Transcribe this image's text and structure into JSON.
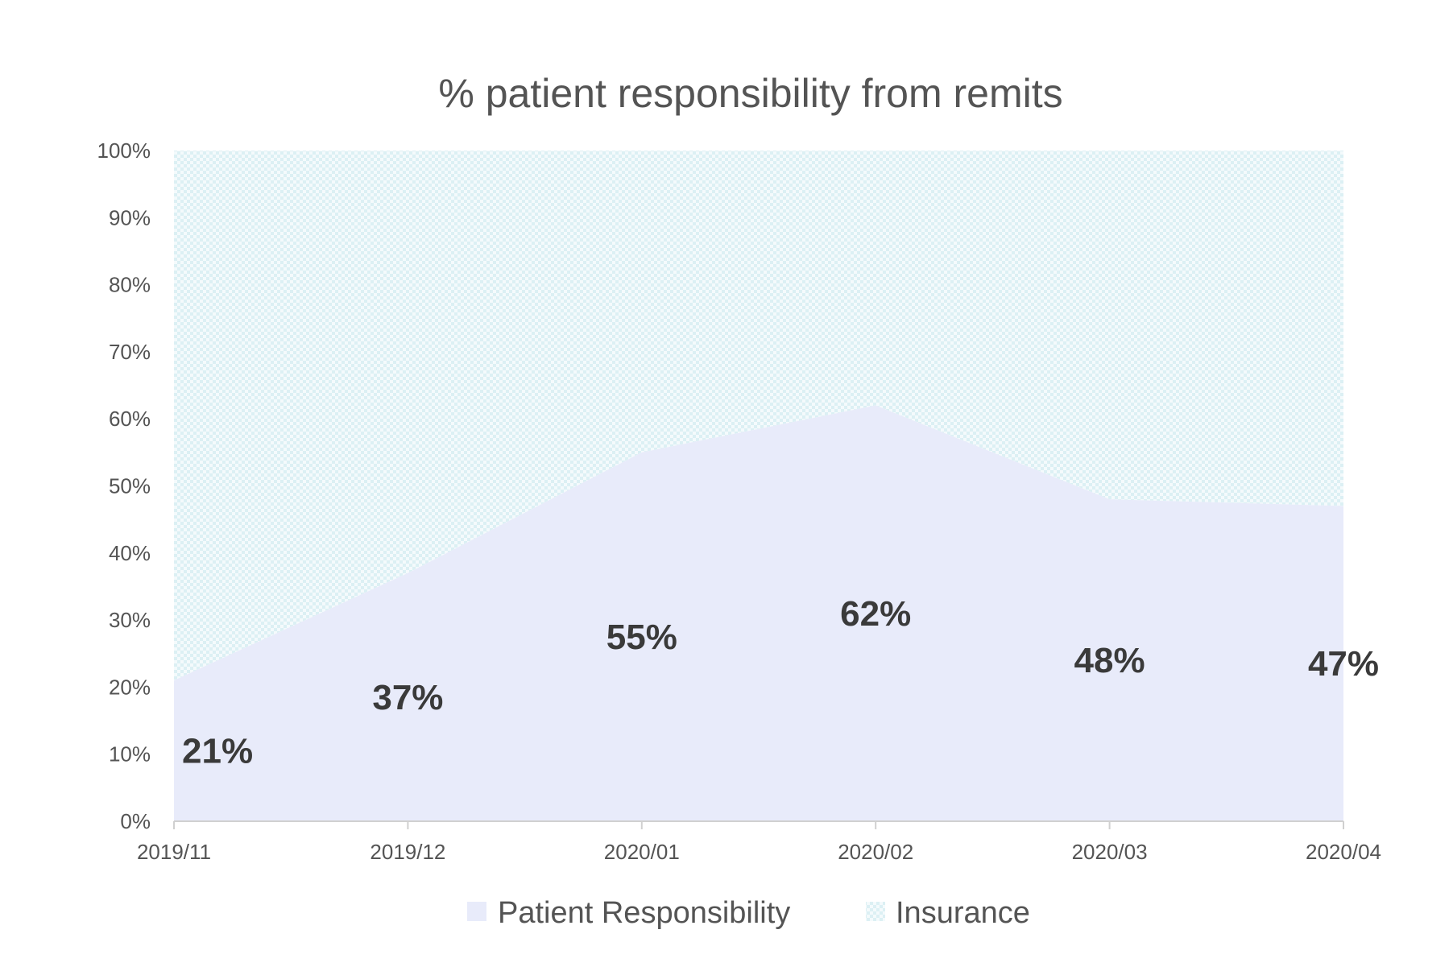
{
  "chart_data": {
    "type": "area",
    "title": "% patient responsibility from remits",
    "xlabel": "",
    "ylabel": "",
    "categories": [
      "2019/11",
      "2019/12",
      "2020/01",
      "2020/02",
      "2020/03",
      "2020/04"
    ],
    "ylim": [
      0,
      100
    ],
    "y_ticks": [
      "0%",
      "10%",
      "20%",
      "30%",
      "40%",
      "50%",
      "60%",
      "70%",
      "80%",
      "90%",
      "100%"
    ],
    "stacked_percent": true,
    "series": [
      {
        "name": "Patient Responsibility",
        "values": [
          21,
          37,
          55,
          62,
          48,
          47
        ],
        "data_labels": [
          "21%",
          "37%",
          "55%",
          "62%",
          "48%",
          "47%"
        ],
        "color": "#e8ebfa"
      },
      {
        "name": "Insurance",
        "values": [
          79,
          63,
          45,
          38,
          52,
          53
        ],
        "color": "#e3f3f7",
        "pattern": "checker"
      }
    ],
    "grid": false,
    "legend_position": "bottom"
  }
}
